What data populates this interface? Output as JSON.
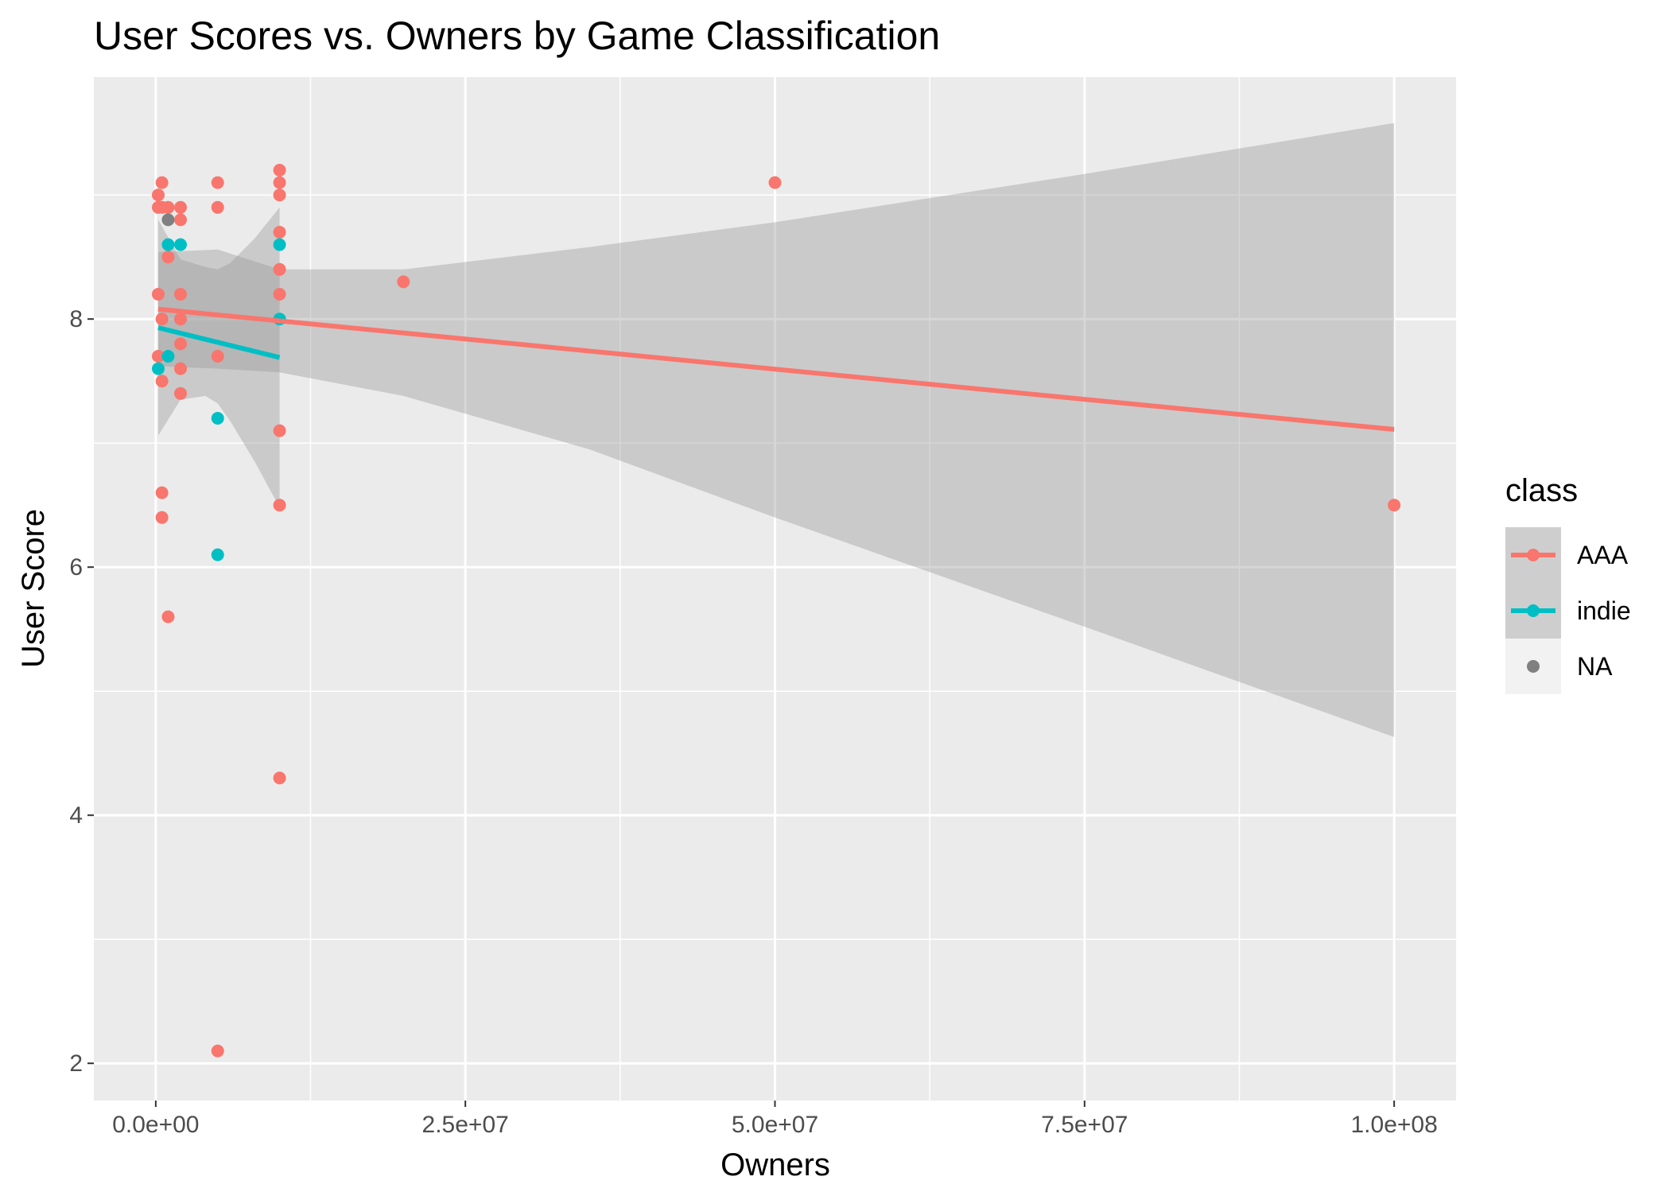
{
  "chart_data": {
    "type": "scatter",
    "title": "User Scores vs. Owners by Game Classification",
    "xlabel": "Owners",
    "ylabel": "User Score",
    "xlim": [
      -5000000,
      105000000
    ],
    "ylim": [
      1.7,
      9.95
    ],
    "x_ticks": [
      {
        "value": 0,
        "label": "0.0e+00"
      },
      {
        "value": 25000000,
        "label": "2.5e+07"
      },
      {
        "value": 50000000,
        "label": "5.0e+07"
      },
      {
        "value": 75000000,
        "label": "7.5e+07"
      },
      {
        "value": 100000000,
        "label": "1.0e+08"
      }
    ],
    "x_minor": [
      12500000,
      37500000,
      62500000,
      87500000
    ],
    "y_ticks": [
      {
        "value": 2,
        "label": "2"
      },
      {
        "value": 4,
        "label": "4"
      },
      {
        "value": 6,
        "label": "6"
      },
      {
        "value": 8,
        "label": "8"
      }
    ],
    "y_minor": [
      3,
      5,
      7,
      9
    ],
    "grid": true,
    "legend": {
      "title": "class",
      "position": "right",
      "entries": [
        {
          "label": "AAA",
          "color": "#F8766D",
          "band": true
        },
        {
          "label": "indie",
          "color": "#00BFC4",
          "band": true
        },
        {
          "label": "NA",
          "color": "#808080",
          "band": false
        }
      ]
    },
    "colors": {
      "AAA": "#F8766D",
      "indie": "#00BFC4",
      "NA": "#808080",
      "panel": "#EBEBEB",
      "band": "#999999"
    },
    "series": [
      {
        "name": "AAA",
        "points": [
          [
            200000,
            9.0
          ],
          [
            200000,
            8.9
          ],
          [
            200000,
            8.2
          ],
          [
            200000,
            7.7
          ],
          [
            500000,
            9.1
          ],
          [
            500000,
            8.9
          ],
          [
            500000,
            8.0
          ],
          [
            500000,
            7.5
          ],
          [
            500000,
            6.6
          ],
          [
            500000,
            6.4
          ],
          [
            1000000,
            8.9
          ],
          [
            1000000,
            8.5
          ],
          [
            1000000,
            5.6
          ],
          [
            2000000,
            8.9
          ],
          [
            2000000,
            8.8
          ],
          [
            2000000,
            8.2
          ],
          [
            2000000,
            8.0
          ],
          [
            2000000,
            7.8
          ],
          [
            2000000,
            7.6
          ],
          [
            2000000,
            7.4
          ],
          [
            5000000,
            9.1
          ],
          [
            5000000,
            8.9
          ],
          [
            5000000,
            7.7
          ],
          [
            5000000,
            2.1
          ],
          [
            10000000,
            9.2
          ],
          [
            10000000,
            9.1
          ],
          [
            10000000,
            9.0
          ],
          [
            10000000,
            8.7
          ],
          [
            10000000,
            8.4
          ],
          [
            10000000,
            8.2
          ],
          [
            10000000,
            7.1
          ],
          [
            10000000,
            6.5
          ],
          [
            10000000,
            4.3
          ],
          [
            20000000,
            8.3
          ],
          [
            50000000,
            9.1
          ],
          [
            100000000,
            6.5
          ]
        ],
        "fit": {
          "x": [
            200000,
            100000000
          ],
          "y": [
            8.08,
            7.11
          ]
        },
        "band": {
          "x": [
            200000,
            5000000,
            10000000,
            20000000,
            35000000,
            50000000,
            75000000,
            100000000
          ],
          "lower": [
            7.62,
            7.6,
            7.57,
            7.38,
            6.95,
            6.4,
            5.52,
            4.63
          ],
          "upper": [
            8.54,
            8.56,
            8.4,
            8.4,
            8.58,
            8.78,
            9.17,
            9.58
          ]
        }
      },
      {
        "name": "indie",
        "points": [
          [
            200000,
            7.6
          ],
          [
            1000000,
            8.6
          ],
          [
            1000000,
            7.7
          ],
          [
            2000000,
            8.6
          ],
          [
            5000000,
            7.2
          ],
          [
            5000000,
            6.1
          ],
          [
            10000000,
            8.6
          ],
          [
            10000000,
            8.0
          ]
        ],
        "fit": {
          "x": [
            200000,
            10000000
          ],
          "y": [
            7.93,
            7.69
          ]
        },
        "band": {
          "x": [
            200000,
            2000000,
            4000000,
            5000000,
            6000000,
            8000000,
            10000000
          ],
          "lower": [
            7.06,
            7.35,
            7.38,
            7.32,
            7.18,
            6.85,
            6.48
          ],
          "upper": [
            8.8,
            8.48,
            8.42,
            8.4,
            8.45,
            8.65,
            8.9
          ]
        }
      },
      {
        "name": "NA",
        "points": [
          [
            1000000,
            8.8
          ]
        ]
      }
    ]
  }
}
